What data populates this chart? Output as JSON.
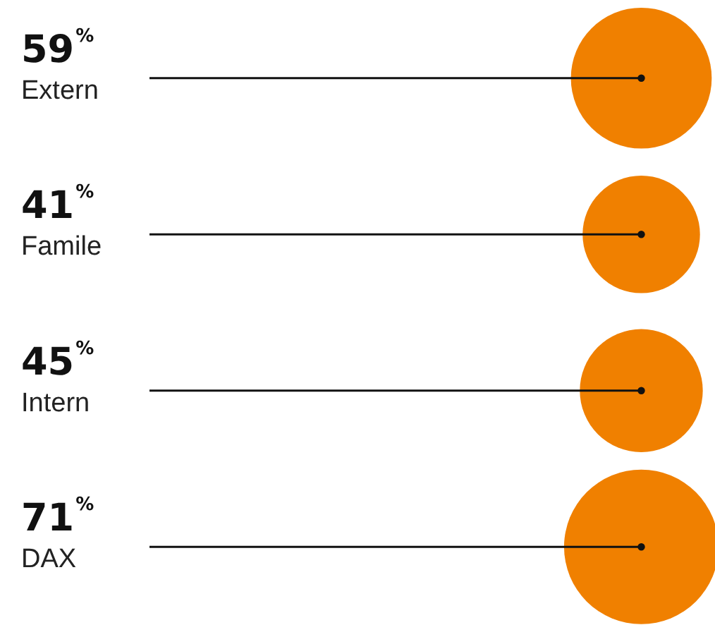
{
  "chart_data": {
    "type": "other",
    "categories": [
      "Extern",
      "Famile",
      "Intern",
      "DAX"
    ],
    "values": [
      59,
      41,
      45,
      71
    ],
    "value_labels": [
      "59$^{%}$",
      "41$^{%}$",
      "45$^{%}$",
      "71$^{%}$"
    ],
    "color": "#f08000"
  }
}
